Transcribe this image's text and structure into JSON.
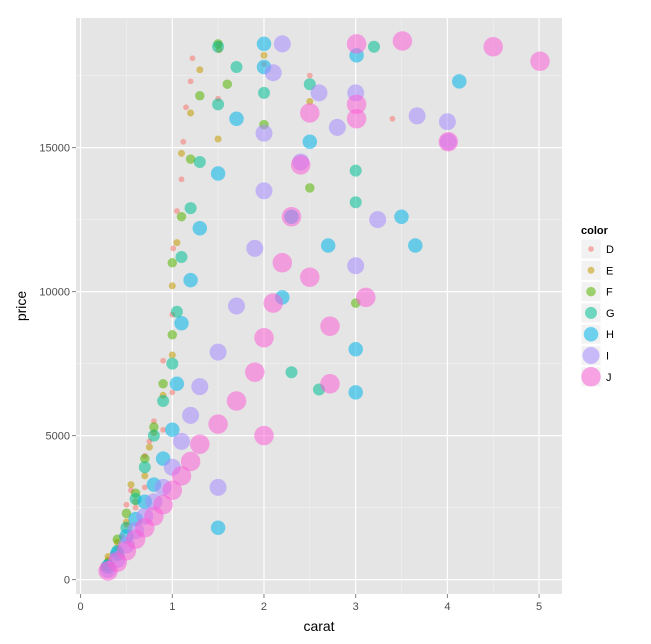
{
  "chart_data": {
    "type": "scatter",
    "title": "",
    "xlabel": "carat",
    "ylabel": "price",
    "xlim": [
      -0.05,
      5.25
    ],
    "ylim": [
      -500,
      19500
    ],
    "x_ticks": [
      0,
      1,
      2,
      3,
      4,
      5
    ],
    "y_ticks": [
      0,
      5000,
      10000,
      15000
    ],
    "grid": true,
    "legend": {
      "title": "color",
      "position": "right"
    },
    "series": [
      {
        "name": "D",
        "color": "#F8766D",
        "size": 1.5,
        "points": [
          [
            0.25,
            500
          ],
          [
            0.3,
            700
          ],
          [
            0.35,
            900
          ],
          [
            0.4,
            1100
          ],
          [
            0.45,
            1500
          ],
          [
            0.5,
            1900
          ],
          [
            0.5,
            2600
          ],
          [
            0.55,
            3100
          ],
          [
            0.6,
            2500
          ],
          [
            0.7,
            3200
          ],
          [
            0.7,
            4300
          ],
          [
            0.75,
            4800
          ],
          [
            0.8,
            5500
          ],
          [
            0.9,
            5200
          ],
          [
            0.9,
            7600
          ],
          [
            1.0,
            6500
          ],
          [
            1.0,
            9200
          ],
          [
            1.01,
            11500
          ],
          [
            1.05,
            12800
          ],
          [
            1.1,
            13900
          ],
          [
            1.12,
            15200
          ],
          [
            1.15,
            16400
          ],
          [
            1.2,
            17300
          ],
          [
            1.22,
            18100
          ],
          [
            1.5,
            16700
          ],
          [
            1.51,
            18600
          ],
          [
            2.0,
            17900
          ],
          [
            2.5,
            17500
          ],
          [
            3.4,
            16000
          ]
        ]
      },
      {
        "name": "E",
        "color": "#C49A00",
        "size": 2,
        "points": [
          [
            0.25,
            400
          ],
          [
            0.3,
            800
          ],
          [
            0.4,
            1300
          ],
          [
            0.5,
            2000
          ],
          [
            0.55,
            3300
          ],
          [
            0.6,
            2700
          ],
          [
            0.7,
            3600
          ],
          [
            0.75,
            4600
          ],
          [
            0.8,
            5100
          ],
          [
            0.9,
            6400
          ],
          [
            1.0,
            7800
          ],
          [
            1.0,
            10200
          ],
          [
            1.05,
            11700
          ],
          [
            1.1,
            14800
          ],
          [
            1.2,
            16200
          ],
          [
            1.3,
            17700
          ],
          [
            1.5,
            15300
          ],
          [
            1.51,
            18400
          ],
          [
            2.0,
            18200
          ],
          [
            2.5,
            16600
          ]
        ]
      },
      {
        "name": "F",
        "color": "#53B400",
        "size": 3,
        "points": [
          [
            0.3,
            600
          ],
          [
            0.4,
            1400
          ],
          [
            0.5,
            2300
          ],
          [
            0.6,
            3000
          ],
          [
            0.7,
            4200
          ],
          [
            0.8,
            5300
          ],
          [
            0.9,
            6800
          ],
          [
            1.0,
            8500
          ],
          [
            1.0,
            11000
          ],
          [
            1.1,
            12600
          ],
          [
            1.2,
            14600
          ],
          [
            1.3,
            16800
          ],
          [
            1.5,
            18600
          ],
          [
            1.6,
            17200
          ],
          [
            2.0,
            15800
          ],
          [
            2.5,
            13600
          ],
          [
            3.0,
            9600
          ]
        ]
      },
      {
        "name": "G",
        "color": "#00C094",
        "size": 4,
        "points": [
          [
            0.3,
            500
          ],
          [
            0.4,
            1000
          ],
          [
            0.5,
            1800
          ],
          [
            0.6,
            2800
          ],
          [
            0.7,
            3900
          ],
          [
            0.8,
            5000
          ],
          [
            0.9,
            6200
          ],
          [
            1.0,
            7500
          ],
          [
            1.05,
            9300
          ],
          [
            1.1,
            11200
          ],
          [
            1.2,
            12900
          ],
          [
            1.3,
            14500
          ],
          [
            1.5,
            16500
          ],
          [
            1.5,
            18500
          ],
          [
            1.7,
            17800
          ],
          [
            2.0,
            16900
          ],
          [
            2.3,
            7200
          ],
          [
            2.5,
            17200
          ],
          [
            2.6,
            6600
          ],
          [
            3.0,
            14200
          ],
          [
            3.0,
            13100
          ],
          [
            3.2,
            18500
          ]
        ]
      },
      {
        "name": "H",
        "color": "#00B6EB",
        "size": 5,
        "points": [
          [
            0.3,
            450
          ],
          [
            0.4,
            900
          ],
          [
            0.5,
            1500
          ],
          [
            0.6,
            2100
          ],
          [
            0.7,
            2700
          ],
          [
            0.8,
            3300
          ],
          [
            0.9,
            4200
          ],
          [
            1.0,
            5200
          ],
          [
            1.05,
            6800
          ],
          [
            1.1,
            8900
          ],
          [
            1.2,
            10400
          ],
          [
            1.3,
            12200
          ],
          [
            1.5,
            14100
          ],
          [
            1.5,
            1800
          ],
          [
            1.7,
            16000
          ],
          [
            2.0,
            17800
          ],
          [
            2.0,
            18600
          ],
          [
            2.2,
            9800
          ],
          [
            2.3,
            12600
          ],
          [
            2.5,
            15200
          ],
          [
            2.7,
            11600
          ],
          [
            3.0,
            6500
          ],
          [
            3.0,
            8000
          ],
          [
            3.01,
            18200
          ],
          [
            3.5,
            12600
          ],
          [
            3.65,
            11600
          ],
          [
            4.13,
            17300
          ]
        ]
      },
      {
        "name": "I",
        "color": "#A58AFF",
        "size": 6,
        "points": [
          [
            0.3,
            350
          ],
          [
            0.4,
            700
          ],
          [
            0.5,
            1200
          ],
          [
            0.6,
            1700
          ],
          [
            0.7,
            2200
          ],
          [
            0.8,
            2700
          ],
          [
            0.9,
            3200
          ],
          [
            1.0,
            3900
          ],
          [
            1.1,
            4800
          ],
          [
            1.2,
            5700
          ],
          [
            1.3,
            6700
          ],
          [
            1.5,
            7900
          ],
          [
            1.5,
            3200
          ],
          [
            1.7,
            9500
          ],
          [
            1.9,
            11500
          ],
          [
            2.0,
            13500
          ],
          [
            2.0,
            15500
          ],
          [
            2.1,
            17600
          ],
          [
            2.2,
            18600
          ],
          [
            2.4,
            14500
          ],
          [
            2.6,
            16900
          ],
          [
            2.8,
            15700
          ],
          [
            3.0,
            16900
          ],
          [
            3.0,
            10900
          ],
          [
            3.24,
            12500
          ],
          [
            3.67,
            16100
          ],
          [
            4.0,
            15900
          ],
          [
            4.01,
            15200
          ]
        ]
      },
      {
        "name": "J",
        "color": "#FB61D7",
        "size": 7,
        "points": [
          [
            0.3,
            300
          ],
          [
            0.4,
            600
          ],
          [
            0.5,
            1000
          ],
          [
            0.6,
            1400
          ],
          [
            0.7,
            1800
          ],
          [
            0.8,
            2200
          ],
          [
            0.9,
            2600
          ],
          [
            1.0,
            3100
          ],
          [
            1.1,
            3600
          ],
          [
            1.2,
            4100
          ],
          [
            1.3,
            4700
          ],
          [
            1.5,
            5400
          ],
          [
            1.7,
            6200
          ],
          [
            1.9,
            7200
          ],
          [
            2.0,
            8400
          ],
          [
            2.0,
            5000
          ],
          [
            2.1,
            9600
          ],
          [
            2.2,
            11000
          ],
          [
            2.3,
            12600
          ],
          [
            2.4,
            14400
          ],
          [
            2.5,
            16200
          ],
          [
            2.5,
            10500
          ],
          [
            2.72,
            6800
          ],
          [
            2.72,
            8800
          ],
          [
            3.01,
            18600
          ],
          [
            3.01,
            16000
          ],
          [
            3.01,
            16500
          ],
          [
            3.11,
            9800
          ],
          [
            3.51,
            18700
          ],
          [
            4.01,
            15200
          ],
          [
            4.5,
            18500
          ],
          [
            5.01,
            18000
          ]
        ]
      }
    ]
  }
}
